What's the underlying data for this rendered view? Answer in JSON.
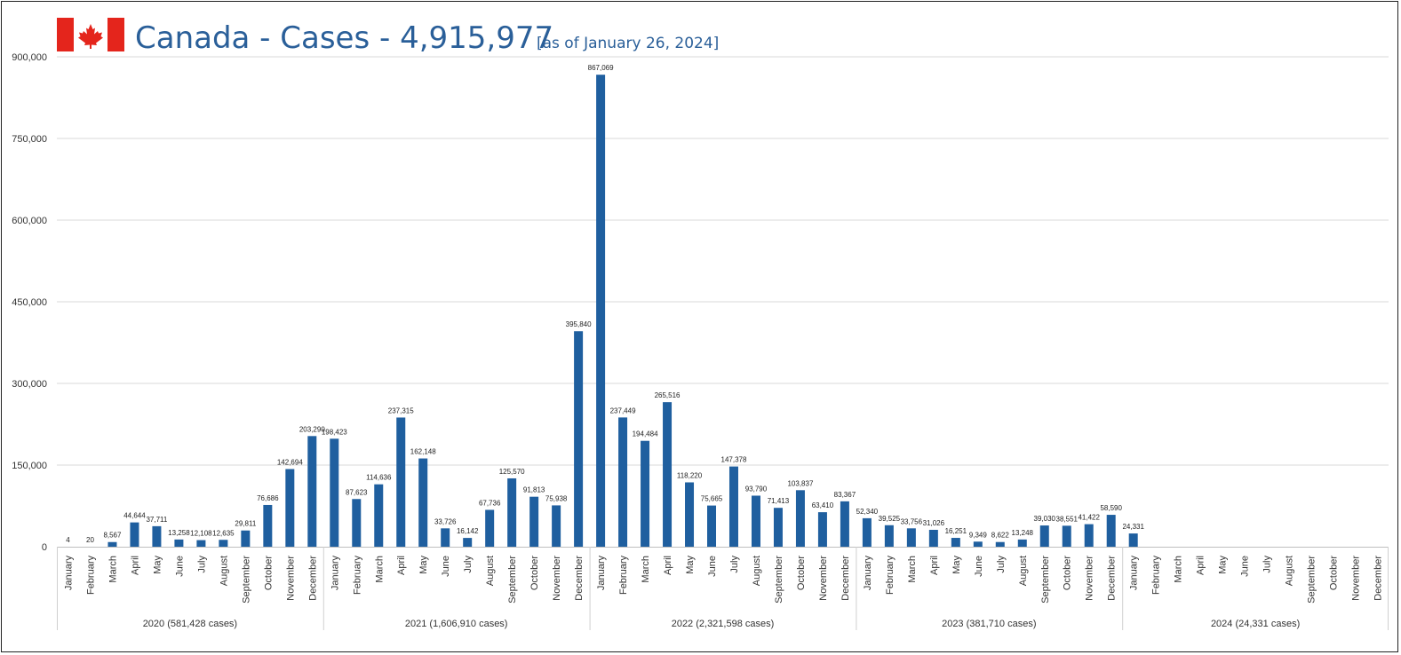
{
  "title": {
    "main": "Canada - Cases - 4,915,977",
    "sub": "[as of January 26, 2024]"
  },
  "colors": {
    "bar": "#1f5f9f",
    "grid": "#d9d9d9",
    "title": "#2a5f99",
    "flag_red": "#e4251c"
  },
  "icons": {
    "flag": "canada-flag-icon"
  },
  "chart_data": {
    "type": "bar",
    "ylim": [
      0,
      900000
    ],
    "yticks": [
      "0",
      "150,000",
      "300,000",
      "450,000",
      "600,000",
      "750,000",
      "900,000"
    ],
    "grid": true,
    "legend": "none",
    "categories": [
      "January",
      "February",
      "March",
      "April",
      "May",
      "June",
      "July",
      "August",
      "September",
      "October",
      "November",
      "December"
    ],
    "groups": [
      {
        "label": "2020 (581,428 cases)",
        "values": [
          4,
          20,
          8567,
          44644,
          37711,
          13258,
          12108,
          12635,
          29811,
          76686,
          142694,
          203290
        ],
        "labels": [
          "4",
          "20",
          "8,567",
          "44,644",
          "37,711",
          "13,258",
          "12,108",
          "12,635",
          "29,811",
          "76,686",
          "142,694",
          "203,290"
        ]
      },
      {
        "label": "2021 (1,606,910 cases)",
        "values": [
          198423,
          87623,
          114636,
          237315,
          162148,
          33726,
          16142,
          67736,
          125570,
          91813,
          75938,
          395840
        ],
        "labels": [
          "198,423",
          "87,623",
          "114,636",
          "237,315",
          "162,148",
          "33,726",
          "16,142",
          "67,736",
          "125,570",
          "91,813",
          "75,938",
          "395,840"
        ]
      },
      {
        "label": "2022 (2,321,598 cases)",
        "values": [
          867069,
          237449,
          194484,
          265516,
          118220,
          75665,
          147378,
          93790,
          71413,
          103837,
          63410,
          83367
        ],
        "labels": [
          "867,069",
          "237,449",
          "194,484",
          "265,516",
          "118,220",
          "75,665",
          "147,378",
          "93,790",
          "71,413",
          "103,837",
          "63,410",
          "83,367"
        ]
      },
      {
        "label": "2023 (381,710 cases)",
        "values": [
          52340,
          39525,
          33756,
          31026,
          16251,
          9349,
          8622,
          13248,
          39030,
          38551,
          41422,
          58590
        ],
        "labels": [
          "52,340",
          "39,525",
          "33,756",
          "31,026",
          "16,251",
          "9,349",
          "8,622",
          "13,248",
          "39,030",
          "38,551",
          "41,422",
          "58,590"
        ]
      },
      {
        "label": "2024 (24,331 cases)",
        "values": [
          24331,
          null,
          null,
          null,
          null,
          null,
          null,
          null,
          null,
          null,
          null,
          null
        ],
        "labels": [
          "24,331",
          "",
          "",
          "",
          "",
          "",
          "",
          "",
          "",
          "",
          "",
          ""
        ]
      }
    ]
  }
}
